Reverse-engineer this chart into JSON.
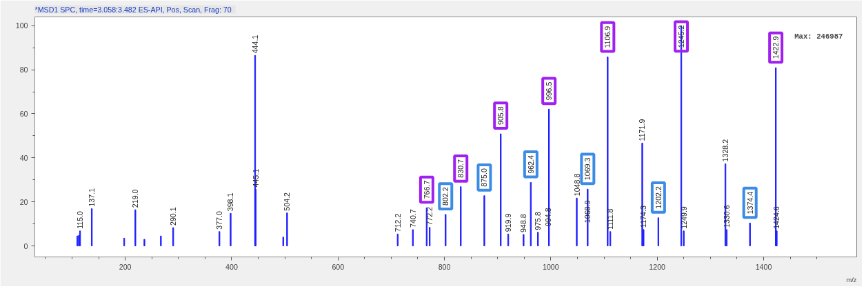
{
  "chart_data": {
    "type": "bar",
    "title": "*MSD1 SPC, time=3.058:3.482   ES-API, Pos, Scan, Frag: 70",
    "xlabel": "m/z",
    "x": [
      110,
      113,
      115.0,
      137.1,
      198,
      219.0,
      236,
      267,
      290.1,
      377.0,
      398.1,
      444.1,
      445.1,
      497,
      504.2,
      712.2,
      740.7,
      766.7,
      772.2,
      802.2,
      830.7,
      875.0,
      905.8,
      919.9,
      948.8,
      962.4,
      975.8,
      994.8,
      996.5,
      1048.8,
      1068.9,
      1069.3,
      1106.9,
      1111.8,
      1171.9,
      1174.3,
      1202.2,
      1245.2,
      1249.9,
      1328.2,
      1330.6,
      1374.4,
      1422.9,
      1424.6
    ],
    "series": [
      {
        "color": "#1f1fff",
        "values": [
          4.5,
          4.8,
          6.8,
          16.9,
          3.5,
          16.4,
          3,
          4.5,
          8.3,
          6.5,
          14.8,
          86.5,
          25.7,
          4,
          15,
          5.4,
          7.4,
          17.3,
          8.4,
          14.3,
          26.9,
          22.8,
          50.9,
          5.4,
          5.2,
          28.8,
          6.2,
          null,
          62.1,
          21.7,
          null,
          25.8,
          85.8,
          6.5,
          46.7,
          7.4,
          12.8,
          100,
          6.8,
          37.3,
          7.4,
          10.4,
          80.9,
          6.8
        ]
      }
    ],
    "xlim": [
      30,
      1575
    ],
    "xticks": [
      {
        "value": 50,
        "label": null
      },
      {
        "value": 100,
        "label": null
      },
      {
        "value": 150,
        "label": null
      },
      200,
      {
        "value": 250,
        "label": null
      },
      {
        "value": 300,
        "label": null
      },
      {
        "value": 350,
        "label": null
      },
      400,
      {
        "value": 450,
        "label": null
      },
      {
        "value": 500,
        "label": null
      },
      {
        "value": 550,
        "label": null
      },
      600,
      {
        "value": 650,
        "label": null
      },
      {
        "value": 700,
        "label": null
      },
      {
        "value": 750,
        "label": null
      },
      800,
      {
        "value": 850,
        "label": null
      },
      {
        "value": 900,
        "label": null
      },
      {
        "value": 950,
        "label": null
      },
      1000,
      {
        "value": 1050,
        "label": null
      },
      {
        "value": 1100,
        "label": null
      },
      {
        "value": 1150,
        "label": null
      },
      1200,
      {
        "value": 1250,
        "label": null
      },
      {
        "value": 1300,
        "label": null
      },
      {
        "value": 1350,
        "label": null
      },
      1400,
      {
        "value": 1450,
        "label": null
      },
      {
        "value": 1500,
        "label": null
      }
    ],
    "ylim": [
      -5,
      104
    ],
    "yticks": [
      0,
      {
        "value": 10,
        "label": null
      },
      20,
      {
        "value": 30,
        "label": null
      },
      40,
      {
        "value": 50,
        "label": null
      },
      60,
      {
        "value": 70,
        "label": null
      },
      80,
      {
        "value": 90,
        "label": null
      },
      100
    ],
    "grid": false,
    "annotations": [
      {
        "text": "115.0",
        "x": 115.0,
        "y": 6.8
      },
      {
        "text": "137.1",
        "x": 137.1,
        "y": 16.9
      },
      {
        "text": "219.0",
        "x": 219.0,
        "y": 16.4
      },
      {
        "text": "290.1",
        "x": 290.1,
        "y": 8.3
      },
      {
        "text": "377.0",
        "x": 377.0,
        "y": 6.5
      },
      {
        "text": "398.1",
        "x": 398.1,
        "y": 14.8
      },
      {
        "text": "444.1",
        "x": 444.1,
        "y": 86.5
      },
      {
        "text": "445.1",
        "x": 445.1,
        "y": 25.7
      },
      {
        "text": "504.2",
        "x": 504.2,
        "y": 15
      },
      {
        "text": "712.2",
        "x": 712.2,
        "y": 5.4
      },
      {
        "text": "740.7",
        "x": 740.7,
        "y": 7.4
      },
      {
        "text": "766.7",
        "x": 766.7,
        "y": 17.3
      },
      {
        "text": "772.2",
        "x": 772.2,
        "y": 8.4
      },
      {
        "text": "802.2",
        "x": 802.2,
        "y": 14.3
      },
      {
        "text": "830.7",
        "x": 830.7,
        "y": 26.9
      },
      {
        "text": "875.0",
        "x": 875.0,
        "y": 22.8
      },
      {
        "text": "905.8",
        "x": 905.8,
        "y": 50.9
      },
      {
        "text": "919.9",
        "x": 919.9,
        "y": 5.4
      },
      {
        "text": "948.8",
        "x": 948.8,
        "y": 5.2
      },
      {
        "text": "962.4",
        "x": 962.4,
        "y": 28.8
      },
      {
        "text": "975.8",
        "x": 975.8,
        "y": 6.2
      },
      {
        "text": "994.8",
        "x": 994.8,
        "y": 8
      },
      {
        "text": "996.5",
        "x": 996.5,
        "y": 62.1
      },
      {
        "text": "1048.8",
        "x": 1048.8,
        "y": 21.7
      },
      {
        "text": "1068.9",
        "x": 1068.9,
        "y": 9.5
      },
      {
        "text": "1069.3",
        "x": 1069.3,
        "y": 25.8
      },
      {
        "text": "1106.9",
        "x": 1106.9,
        "y": 85.8
      },
      {
        "text": "1111.8",
        "x": 1111.8,
        "y": 6.5
      },
      {
        "text": "1171.9",
        "x": 1171.9,
        "y": 46.7
      },
      {
        "text": "1174.3",
        "x": 1174.3,
        "y": 7.4
      },
      {
        "text": "1202.2",
        "x": 1202.2,
        "y": 12.8
      },
      {
        "text": "1245.2",
        "x": 1245.2,
        "y": 100
      },
      {
        "text": "1249.9",
        "x": 1249.9,
        "y": 6.8
      },
      {
        "text": "1328.2",
        "x": 1328.2,
        "y": 37.3
      },
      {
        "text": "1330.6",
        "x": 1330.6,
        "y": 7.4
      },
      {
        "text": "1374.4",
        "x": 1374.4,
        "y": 10.4
      },
      {
        "text": "1422.9",
        "x": 1422.9,
        "y": 80.9
      },
      {
        "text": "1424.6",
        "x": 1424.6,
        "y": 6.8
      },
      "Max: 246987"
    ]
  }
}
